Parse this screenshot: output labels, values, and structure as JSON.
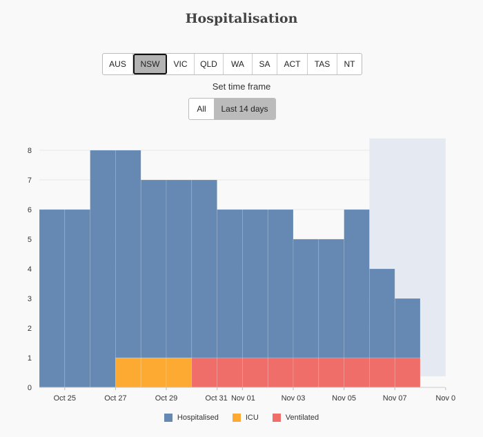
{
  "title": "Hospitalisation",
  "regions": [
    "AUS",
    "NSW",
    "VIC",
    "QLD",
    "WA",
    "SA",
    "ACT",
    "TAS",
    "NT"
  ],
  "active_region": "NSW",
  "timeframe": {
    "label": "Set time frame",
    "options": [
      "All",
      "Last 14 days"
    ],
    "selected": "Last 14 days"
  },
  "colors": {
    "hospitalised": "#6689b4",
    "icu": "#fdaa33",
    "ventilated": "#ef6e6a",
    "shaded_region": "#e4e9f2"
  },
  "chart_data": {
    "type": "bar",
    "stacked": true,
    "x": [
      "Oct 24",
      "Oct 25",
      "Oct 26",
      "Oct 27",
      "Oct 28",
      "Oct 29",
      "Oct 30",
      "Oct 31",
      "Nov 01",
      "Nov 02",
      "Nov 03",
      "Nov 04",
      "Nov 05",
      "Nov 06",
      "Nov 07"
    ],
    "series": [
      {
        "name": "Hospitalised",
        "values": [
          6,
          6,
          8,
          7,
          6,
          6,
          6,
          5,
          5,
          5,
          4,
          4,
          5,
          3,
          2
        ]
      },
      {
        "name": "ICU",
        "values": [
          0,
          0,
          0,
          1,
          1,
          1,
          0,
          0,
          0,
          0,
          0,
          0,
          0,
          0,
          0
        ]
      },
      {
        "name": "Ventilated",
        "values": [
          0,
          0,
          0,
          0,
          0,
          0,
          1,
          1,
          1,
          1,
          1,
          1,
          1,
          1,
          1
        ]
      }
    ],
    "x_tick_labels": [
      "Oct 25",
      "Oct 27",
      "Oct 29",
      "Oct 31",
      "Nov 01",
      "Nov 03",
      "Nov 05",
      "Nov 07",
      "Nov 0"
    ],
    "y_ticks": [
      0,
      1,
      2,
      3,
      4,
      5,
      6,
      7,
      8
    ],
    "ylim": [
      0,
      8.4
    ],
    "shaded_range": [
      "Nov 06",
      "Nov 08"
    ],
    "legend_position": "bottom-center",
    "grid": true
  }
}
